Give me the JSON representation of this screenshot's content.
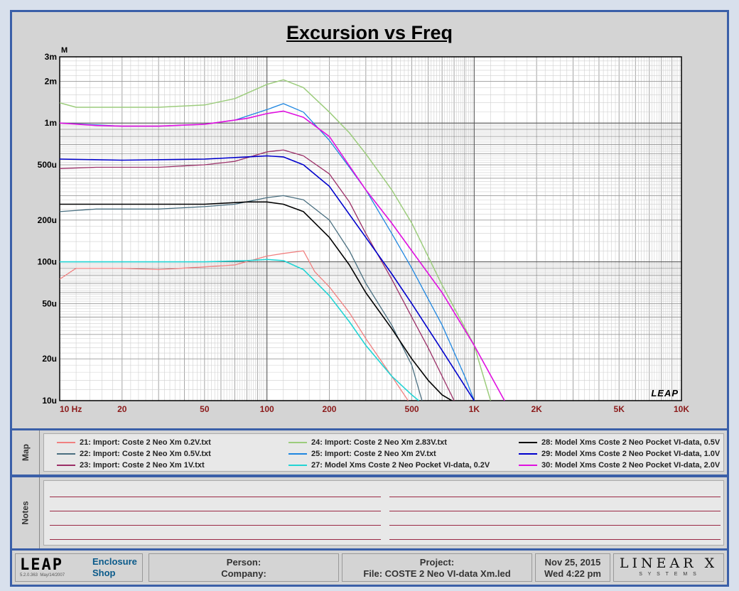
{
  "chart_data": {
    "type": "line",
    "title": "Excursion vs Freq",
    "ylabel": "M",
    "xscale": "log",
    "yscale": "log",
    "xlim": [
      10,
      10000
    ],
    "ylim": [
      1e-05,
      0.003
    ],
    "x_ticks": [
      {
        "v": 10,
        "label": "10  Hz"
      },
      {
        "v": 20,
        "label": "20"
      },
      {
        "v": 50,
        "label": "50"
      },
      {
        "v": 100,
        "label": "100"
      },
      {
        "v": 200,
        "label": "200"
      },
      {
        "v": 500,
        "label": "500"
      },
      {
        "v": 1000,
        "label": "1K"
      },
      {
        "v": 2000,
        "label": "2K"
      },
      {
        "v": 5000,
        "label": "5K"
      },
      {
        "v": 10000,
        "label": "10K"
      }
    ],
    "y_ticks": [
      {
        "v": 0.003,
        "label": "3m"
      },
      {
        "v": 0.002,
        "label": "2m"
      },
      {
        "v": 0.001,
        "label": "1m"
      },
      {
        "v": 0.0005,
        "label": "500u"
      },
      {
        "v": 0.0002,
        "label": "200u"
      },
      {
        "v": 0.0001,
        "label": "100u"
      },
      {
        "v": 5e-05,
        "label": "50u"
      },
      {
        "v": 2e-05,
        "label": "20u"
      },
      {
        "v": 1e-05,
        "label": "10u"
      }
    ],
    "grid": true,
    "watermark": "LEAP",
    "series": [
      {
        "name": "21: Import: Coste 2 Neo Xm 0.2V.txt",
        "color": "#f08080",
        "width": 1.3,
        "x": [
          10,
          12,
          15,
          20,
          30,
          50,
          70,
          100,
          120,
          150,
          170,
          200,
          250,
          300,
          400,
          480
        ],
        "y": [
          7.5e-05,
          9e-05,
          9e-05,
          9e-05,
          8.8e-05,
          9.2e-05,
          9.5e-05,
          0.00011,
          0.000115,
          0.00012,
          8.5e-05,
          6.6e-05,
          4.3e-05,
          2.8e-05,
          1.5e-05,
          1e-05
        ]
      },
      {
        "name": "22: Import: Coste 2 Neo Xm 0.5V.txt",
        "color": "#4a6f80",
        "width": 1.3,
        "x": [
          10,
          15,
          20,
          30,
          50,
          70,
          100,
          120,
          150,
          200,
          250,
          300,
          400,
          500,
          560
        ],
        "y": [
          0.00023,
          0.00024,
          0.00024,
          0.00024,
          0.00025,
          0.00026,
          0.00029,
          0.0003,
          0.00028,
          0.0002,
          0.00012,
          7e-05,
          3.5e-05,
          1.8e-05,
          1e-05
        ]
      },
      {
        "name": "23: Import: Coste 2 Neo Xm 1V.txt",
        "color": "#9b2f67",
        "width": 1.3,
        "x": [
          10,
          15,
          20,
          30,
          50,
          70,
          100,
          120,
          150,
          200,
          250,
          300,
          400,
          500,
          600,
          800
        ],
        "y": [
          0.00047,
          0.00048,
          0.00048,
          0.00048,
          0.0005,
          0.00053,
          0.00062,
          0.00064,
          0.00058,
          0.00043,
          0.00027,
          0.00016,
          7.5e-05,
          4e-05,
          2.4e-05,
          1e-05
        ]
      },
      {
        "name": "24: Import: Coste 2 Neo Xm 2.83V.txt",
        "color": "#9ccc7c",
        "width": 1.5,
        "x": [
          10,
          12,
          15,
          20,
          30,
          50,
          70,
          100,
          120,
          150,
          200,
          250,
          300,
          400,
          500,
          700,
          1000,
          1200
        ],
        "y": [
          0.0014,
          0.0013,
          0.0013,
          0.0013,
          0.0013,
          0.00135,
          0.0015,
          0.0019,
          0.00205,
          0.0018,
          0.0012,
          0.00085,
          0.0006,
          0.00033,
          0.00019,
          6.8e-05,
          2.5e-05,
          1e-05
        ]
      },
      {
        "name": "25: Import: Coste 2 Neo Xm 2V.txt",
        "color": "#1f86e0",
        "width": 1.3,
        "x": [
          10,
          15,
          20,
          30,
          50,
          70,
          100,
          120,
          150,
          200,
          250,
          300,
          400,
          500,
          700,
          900,
          1000
        ],
        "y": [
          0.001,
          0.00097,
          0.00095,
          0.00095,
          0.00098,
          0.00105,
          0.00125,
          0.00138,
          0.0012,
          0.00075,
          0.00048,
          0.00033,
          0.00016,
          9e-05,
          3.5e-05,
          1.5e-05,
          1e-05
        ]
      },
      {
        "name": "27: Model Xms Coste 2 Neo Pocket VI-data, 0.2V",
        "color": "#22d4d4",
        "width": 1.6,
        "x": [
          10,
          20,
          50,
          80,
          100,
          120,
          150,
          200,
          250,
          300,
          400,
          500,
          540
        ],
        "y": [
          0.0001,
          0.0001,
          0.0001,
          0.000102,
          0.000104,
          0.000102,
          8.8e-05,
          5.7e-05,
          3.7e-05,
          2.5e-05,
          1.5e-05,
          1.1e-05,
          1e-05
        ]
      },
      {
        "name": "28: Model Xms Coste 2 Neo Pocket VI-data, 0.5V",
        "color": "#000000",
        "width": 1.6,
        "x": [
          10,
          20,
          50,
          80,
          100,
          120,
          150,
          200,
          250,
          300,
          400,
          500,
          600,
          700,
          780
        ],
        "y": [
          0.00026,
          0.00026,
          0.00026,
          0.00027,
          0.00027,
          0.00026,
          0.00023,
          0.00015,
          9.5e-05,
          6e-05,
          3.3e-05,
          2e-05,
          1.4e-05,
          1.1e-05,
          1e-05
        ]
      },
      {
        "name": "29: Model Xms Coste 2 Neo Pocket VI-data, 1.0V",
        "color": "#0000cc",
        "width": 1.6,
        "x": [
          10,
          20,
          50,
          80,
          100,
          120,
          150,
          200,
          300,
          400,
          500,
          700,
          1000
        ],
        "y": [
          0.00055,
          0.00054,
          0.00055,
          0.00057,
          0.00058,
          0.00057,
          0.0005,
          0.00035,
          0.00015,
          8.2e-05,
          5e-05,
          2.3e-05,
          1e-05
        ]
      },
      {
        "name": "30: Model Xms Coste 2 Neo Pocket VI-data, 2.0V",
        "color": "#e010e0",
        "width": 1.6,
        "x": [
          10,
          15,
          20,
          30,
          50,
          80,
          100,
          120,
          150,
          200,
          300,
          400,
          500,
          700,
          1000,
          1400
        ],
        "y": [
          0.001,
          0.00096,
          0.00095,
          0.00095,
          0.00098,
          0.00108,
          0.00117,
          0.00122,
          0.0011,
          0.0008,
          0.00033,
          0.00019,
          0.00012,
          6e-05,
          2.5e-05,
          1e-05
        ]
      }
    ]
  },
  "map": {
    "label": "Map"
  },
  "notes": {
    "label": "Notes"
  },
  "footer": {
    "logo_text": "LEAP",
    "version": "5.2.0.363",
    "version_date": "May/14/2007",
    "app_line1": "Enclosure",
    "app_line2": "Shop",
    "person_label": "Person:",
    "company_label": "Company:",
    "project_label": "Project:",
    "file_label": "File:  COSTE 2 Neo VI-data Xm.led",
    "date": "Nov 25, 2015",
    "time": "Wed  4:22 pm",
    "brand_top": "LINEAR X",
    "brand_bottom": "S Y S T E M S"
  },
  "colors": {
    "frame": "#3a5fa8",
    "axis_label": "#8b1a1a",
    "note_line": "#9b2a45"
  }
}
